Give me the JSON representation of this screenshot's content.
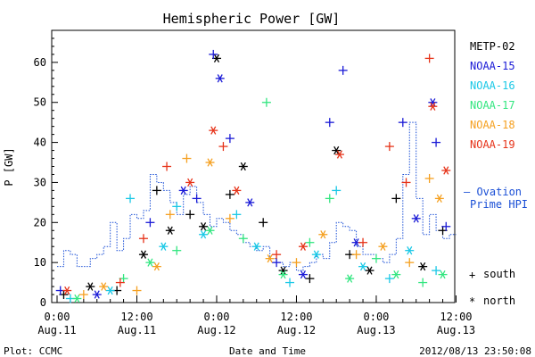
{
  "chart_data": {
    "type": "scatter",
    "title": "Hemispheric Power [GW]",
    "ylabel": "P [GW]",
    "xlabel": "Date and Time",
    "ylim": [
      0,
      68
    ],
    "xlim_hours": [
      0,
      59
    ],
    "y_ticks": [
      0,
      10,
      20,
      30,
      40,
      50,
      60
    ],
    "x_ticks": [
      {
        "hour": 0,
        "time": "0:00",
        "date": "Aug.11"
      },
      {
        "hour": 12,
        "time": "12:00",
        "date": "Aug.11"
      },
      {
        "hour": 24,
        "time": "0:00",
        "date": "Aug.12"
      },
      {
        "hour": 36,
        "time": "12:00",
        "date": "Aug.12"
      },
      {
        "hour": 48,
        "time": "0:00",
        "date": "Aug.13"
      },
      {
        "hour": 60,
        "time": "12:00",
        "date": "Aug.13"
      }
    ],
    "footer_left": "Plot: CCMC",
    "footer_right": "2012/08/13 23:50:08",
    "legend_placement": "right",
    "markers": {
      "south_symbol": "+",
      "south_label": "south",
      "north_symbol": "*",
      "north_label": "north"
    },
    "ovation_label_line1": "— Ovation",
    "ovation_label_line2": "Prime HPI",
    "series": [
      {
        "name": "METP-02",
        "color": "#000000",
        "points": [
          {
            "h": 1,
            "v": 2,
            "m": "+"
          },
          {
            "h": 5,
            "v": 4,
            "m": "*"
          },
          {
            "h": 9,
            "v": 3,
            "m": "+"
          },
          {
            "h": 13,
            "v": 12,
            "m": "*"
          },
          {
            "h": 15,
            "v": 28,
            "m": "+"
          },
          {
            "h": 17,
            "v": 18,
            "m": "*"
          },
          {
            "h": 20,
            "v": 22,
            "m": "+"
          },
          {
            "h": 22,
            "v": 19,
            "m": "*"
          },
          {
            "h": 24,
            "v": 61,
            "m": "*"
          },
          {
            "h": 26,
            "v": 27,
            "m": "+"
          },
          {
            "h": 28,
            "v": 34,
            "m": "*"
          },
          {
            "h": 31,
            "v": 20,
            "m": "+"
          },
          {
            "h": 34,
            "v": 8,
            "m": "*"
          },
          {
            "h": 38,
            "v": 6,
            "m": "+"
          },
          {
            "h": 42,
            "v": 38,
            "m": "*"
          },
          {
            "h": 44,
            "v": 12,
            "m": "+"
          },
          {
            "h": 47,
            "v": 8,
            "m": "*"
          },
          {
            "h": 51,
            "v": 26,
            "m": "+"
          },
          {
            "h": 55,
            "v": 9,
            "m": "*"
          },
          {
            "h": 58,
            "v": 18,
            "m": "+"
          }
        ]
      },
      {
        "name": "NOAA-15",
        "color": "#1a1ad6",
        "points": [
          {
            "h": 0.5,
            "v": 3,
            "m": "+"
          },
          {
            "h": 6,
            "v": 2,
            "m": "*"
          },
          {
            "h": 14,
            "v": 20,
            "m": "+"
          },
          {
            "h": 19,
            "v": 28,
            "m": "*"
          },
          {
            "h": 21,
            "v": 26,
            "m": "+"
          },
          {
            "h": 23.5,
            "v": 62,
            "m": "+"
          },
          {
            "h": 24.5,
            "v": 56,
            "m": "*"
          },
          {
            "h": 26,
            "v": 41,
            "m": "+"
          },
          {
            "h": 29,
            "v": 25,
            "m": "*"
          },
          {
            "h": 33,
            "v": 10,
            "m": "+"
          },
          {
            "h": 37,
            "v": 7,
            "m": "*"
          },
          {
            "h": 41,
            "v": 45,
            "m": "+"
          },
          {
            "h": 43,
            "v": 58,
            "m": "+"
          },
          {
            "h": 45,
            "v": 15,
            "m": "*"
          },
          {
            "h": 52,
            "v": 45,
            "m": "+"
          },
          {
            "h": 54,
            "v": 21,
            "m": "*"
          },
          {
            "h": 56.5,
            "v": 50,
            "m": "*"
          },
          {
            "h": 57,
            "v": 40,
            "m": "+"
          },
          {
            "h": 58.5,
            "v": 19,
            "m": "+"
          }
        ]
      },
      {
        "name": "NOAA-16",
        "color": "#1ac8e6",
        "points": [
          {
            "h": 2,
            "v": 1,
            "m": "+"
          },
          {
            "h": 8,
            "v": 3,
            "m": "*"
          },
          {
            "h": 11,
            "v": 26,
            "m": "+"
          },
          {
            "h": 16,
            "v": 14,
            "m": "*"
          },
          {
            "h": 18,
            "v": 24,
            "m": "+"
          },
          {
            "h": 22,
            "v": 17,
            "m": "*"
          },
          {
            "h": 27,
            "v": 22,
            "m": "+"
          },
          {
            "h": 30,
            "v": 14,
            "m": "*"
          },
          {
            "h": 35,
            "v": 5,
            "m": "+"
          },
          {
            "h": 39,
            "v": 12,
            "m": "*"
          },
          {
            "h": 42,
            "v": 28,
            "m": "+"
          },
          {
            "h": 46,
            "v": 9,
            "m": "*"
          },
          {
            "h": 50,
            "v": 6,
            "m": "+"
          },
          {
            "h": 53,
            "v": 13,
            "m": "*"
          },
          {
            "h": 57,
            "v": 8,
            "m": "+"
          }
        ]
      },
      {
        "name": "NOAA-17",
        "color": "#33e680",
        "points": [
          {
            "h": 3,
            "v": 1,
            "m": "*"
          },
          {
            "h": 10,
            "v": 6,
            "m": "+"
          },
          {
            "h": 14,
            "v": 10,
            "m": "*"
          },
          {
            "h": 18,
            "v": 13,
            "m": "+"
          },
          {
            "h": 23,
            "v": 18,
            "m": "*"
          },
          {
            "h": 28,
            "v": 16,
            "m": "+"
          },
          {
            "h": 31.5,
            "v": 50,
            "m": "+"
          },
          {
            "h": 34,
            "v": 7,
            "m": "*"
          },
          {
            "h": 38,
            "v": 15,
            "m": "+"
          },
          {
            "h": 41,
            "v": 26,
            "m": "+"
          },
          {
            "h": 44,
            "v": 6,
            "m": "*"
          },
          {
            "h": 48,
            "v": 11,
            "m": "+"
          },
          {
            "h": 51,
            "v": 7,
            "m": "*"
          },
          {
            "h": 55,
            "v": 5,
            "m": "+"
          },
          {
            "h": 58,
            "v": 7,
            "m": "*"
          }
        ]
      },
      {
        "name": "NOAA-18",
        "color": "#f5a020",
        "points": [
          {
            "h": 4,
            "v": 2,
            "m": "+"
          },
          {
            "h": 7,
            "v": 4,
            "m": "*"
          },
          {
            "h": 12,
            "v": 3,
            "m": "+"
          },
          {
            "h": 15,
            "v": 9,
            "m": "*"
          },
          {
            "h": 17,
            "v": 22,
            "m": "+"
          },
          {
            "h": 19.5,
            "v": 36,
            "m": "+"
          },
          {
            "h": 23,
            "v": 35,
            "m": "*"
          },
          {
            "h": 26,
            "v": 21,
            "m": "+"
          },
          {
            "h": 32,
            "v": 11,
            "m": "*"
          },
          {
            "h": 36,
            "v": 10,
            "m": "+"
          },
          {
            "h": 40,
            "v": 17,
            "m": "*"
          },
          {
            "h": 45,
            "v": 12,
            "m": "+"
          },
          {
            "h": 49,
            "v": 14,
            "m": "*"
          },
          {
            "h": 53,
            "v": 10,
            "m": "+"
          },
          {
            "h": 56,
            "v": 31,
            "m": "+"
          },
          {
            "h": 57.5,
            "v": 26,
            "m": "*"
          }
        ]
      },
      {
        "name": "NOAA-19",
        "color": "#e63319",
        "points": [
          {
            "h": 1.5,
            "v": 3,
            "m": "*"
          },
          {
            "h": 9.5,
            "v": 5,
            "m": "+"
          },
          {
            "h": 13,
            "v": 16,
            "m": "+"
          },
          {
            "h": 16.5,
            "v": 34,
            "m": "+"
          },
          {
            "h": 20,
            "v": 30,
            "m": "*"
          },
          {
            "h": 23.5,
            "v": 43,
            "m": "*"
          },
          {
            "h": 25,
            "v": 39,
            "m": "+"
          },
          {
            "h": 27,
            "v": 28,
            "m": "*"
          },
          {
            "h": 33,
            "v": 12,
            "m": "+"
          },
          {
            "h": 37,
            "v": 14,
            "m": "*"
          },
          {
            "h": 42.5,
            "v": 37,
            "m": "*"
          },
          {
            "h": 46,
            "v": 15,
            "m": "+"
          },
          {
            "h": 50,
            "v": 39,
            "m": "+"
          },
          {
            "h": 52.5,
            "v": 30,
            "m": "+"
          },
          {
            "h": 56,
            "v": 61,
            "m": "+"
          },
          {
            "h": 56.5,
            "v": 49,
            "m": "*"
          },
          {
            "h": 58.5,
            "v": 33,
            "m": "*"
          }
        ]
      }
    ],
    "ovation_series": {
      "name": "Ovation Prime HPI",
      "color": "#1a4fd6",
      "points": [
        [
          0,
          9
        ],
        [
          1,
          13
        ],
        [
          2,
          12
        ],
        [
          3,
          9
        ],
        [
          4,
          9
        ],
        [
          5,
          11
        ],
        [
          6,
          12
        ],
        [
          7,
          14
        ],
        [
          8,
          20
        ],
        [
          9,
          13
        ],
        [
          10,
          16
        ],
        [
          11,
          22
        ],
        [
          12,
          21
        ],
        [
          13,
          23
        ],
        [
          14,
          32
        ],
        [
          15,
          30
        ],
        [
          16,
          28
        ],
        [
          17,
          25
        ],
        [
          18,
          22
        ],
        [
          19,
          27
        ],
        [
          20,
          29
        ],
        [
          21,
          25
        ],
        [
          22,
          22
        ],
        [
          23,
          19
        ],
        [
          24,
          21
        ],
        [
          25,
          20
        ],
        [
          26,
          18
        ],
        [
          27,
          17
        ],
        [
          28,
          15
        ],
        [
          29,
          14
        ],
        [
          30,
          13
        ],
        [
          31,
          14
        ],
        [
          32,
          11
        ],
        [
          33,
          10
        ],
        [
          34,
          9
        ],
        [
          35,
          10
        ],
        [
          36,
          8
        ],
        [
          37,
          9
        ],
        [
          38,
          10
        ],
        [
          39,
          12
        ],
        [
          40,
          11
        ],
        [
          41,
          15
        ],
        [
          42,
          20
        ],
        [
          43,
          19
        ],
        [
          44,
          18
        ],
        [
          45,
          14
        ],
        [
          46,
          12
        ],
        [
          47,
          12
        ],
        [
          48,
          11
        ],
        [
          49,
          10
        ],
        [
          50,
          12
        ],
        [
          51,
          16
        ],
        [
          52,
          32
        ],
        [
          53,
          45
        ],
        [
          54,
          26
        ],
        [
          55,
          17
        ],
        [
          56,
          22
        ],
        [
          57,
          18
        ],
        [
          58,
          16
        ],
        [
          59,
          17
        ]
      ]
    }
  }
}
